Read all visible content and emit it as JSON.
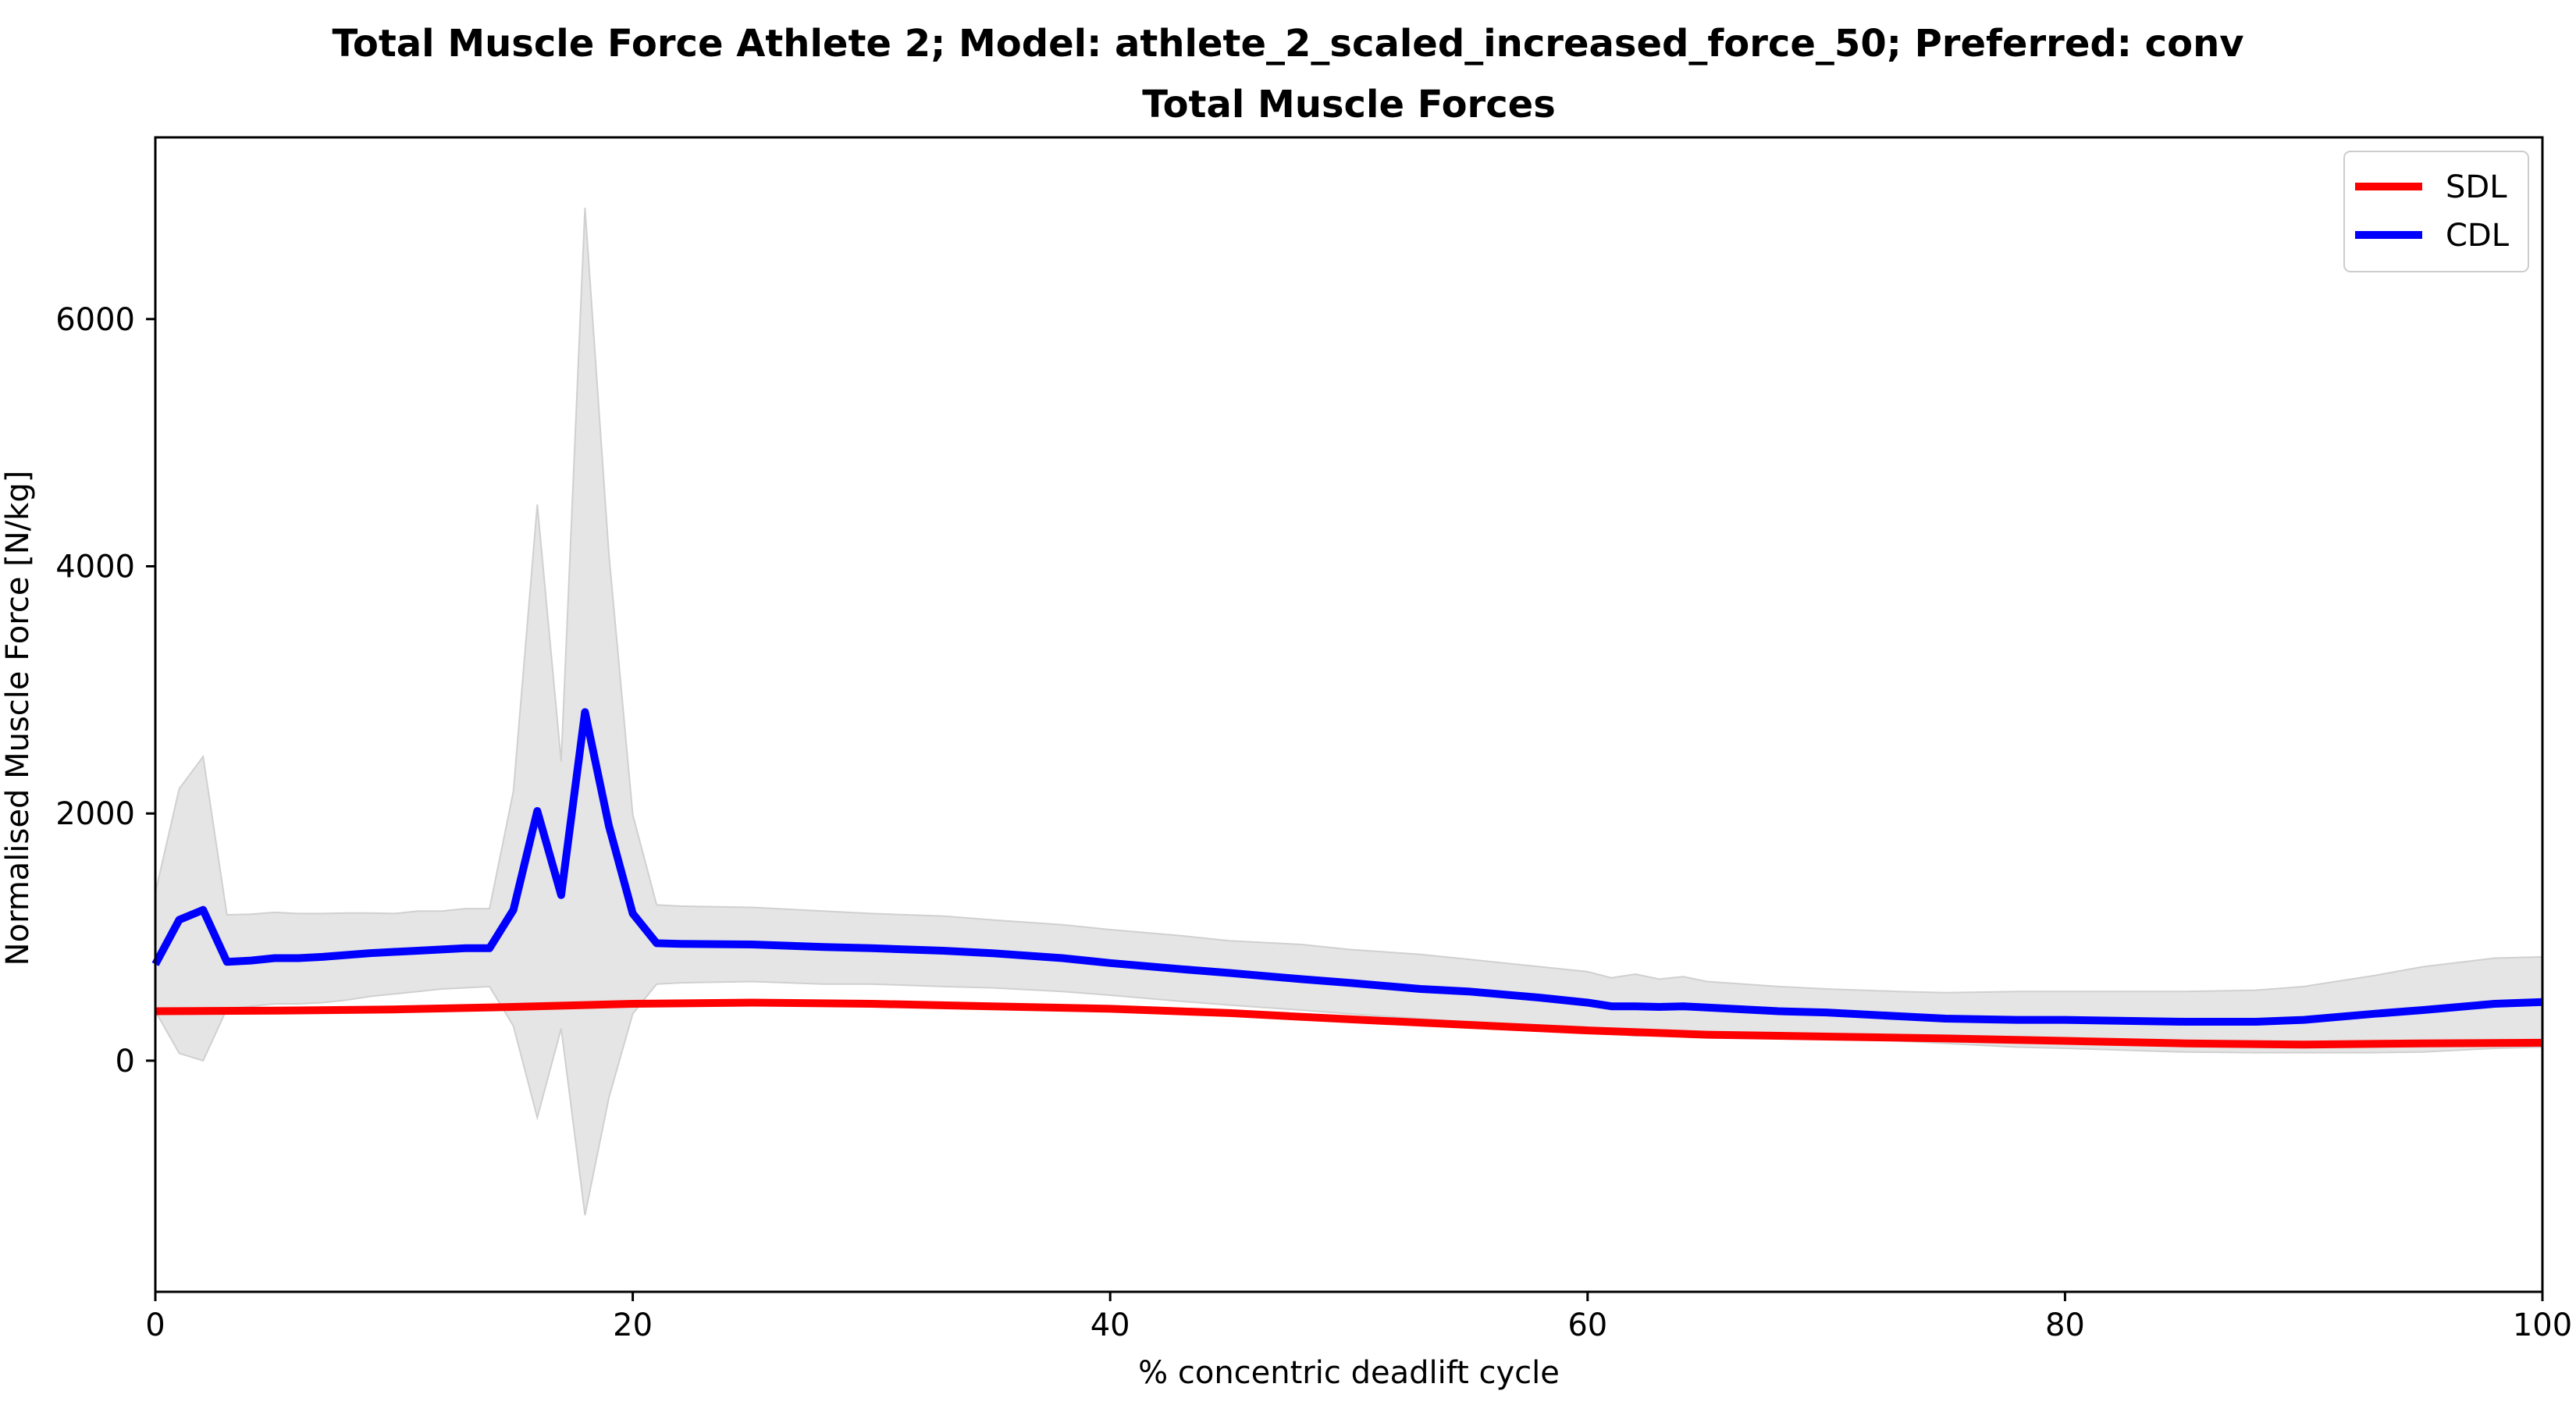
{
  "chart_data": {
    "type": "line",
    "suptitle": "Total Muscle Force Athlete 2; Model: athlete_2_scaled_increased_force_50; Preferred: conv",
    "title": "Total Muscle Forces",
    "xlabel": "% concentric deadlift cycle",
    "ylabel": "Normalised Muscle Force [N/kg]",
    "xlim": [
      0,
      100
    ],
    "ylim": [
      -1870,
      7470
    ],
    "xticks": [
      0,
      20,
      40,
      60,
      80,
      100
    ],
    "yticks": [
      0,
      2000,
      4000,
      6000
    ],
    "grid": false,
    "legend_position": "top-right",
    "colors": {
      "SDL": "#ff0000",
      "CDL": "#0000ff",
      "band": "#e5e5e5",
      "band_edge": "#d0d0d0"
    },
    "series": [
      {
        "name": "SDL",
        "x": [
          0,
          5,
          10,
          15,
          20,
          25,
          30,
          35,
          40,
          45,
          50,
          55,
          60,
          65,
          70,
          75,
          80,
          85,
          90,
          95,
          100
        ],
        "values": [
          400,
          405,
          415,
          435,
          460,
          470,
          460,
          440,
          420,
          385,
          335,
          290,
          245,
          210,
          195,
          180,
          160,
          140,
          130,
          140,
          145
        ]
      },
      {
        "name": "CDL",
        "x": [
          0,
          1,
          2,
          3,
          4,
          5,
          6,
          7,
          8,
          9,
          10,
          11,
          12,
          13,
          14,
          15,
          16,
          17,
          18,
          19,
          20,
          21,
          22,
          25,
          28,
          30,
          33,
          35,
          38,
          40,
          43,
          45,
          48,
          50,
          53,
          55,
          58,
          60,
          61,
          62,
          63,
          64,
          65,
          68,
          70,
          73,
          75,
          78,
          80,
          85,
          88,
          90,
          93,
          95,
          98,
          100
        ],
        "values": [
          780,
          1140,
          1220,
          800,
          810,
          830,
          830,
          840,
          855,
          870,
          880,
          890,
          900,
          910,
          910,
          1220,
          2020,
          1340,
          2820,
          1900,
          1190,
          950,
          945,
          940,
          920,
          910,
          890,
          870,
          830,
          790,
          740,
          710,
          660,
          630,
          580,
          560,
          510,
          470,
          440,
          440,
          435,
          440,
          430,
          400,
          390,
          360,
          340,
          330,
          330,
          315,
          315,
          330,
          380,
          410,
          460,
          475
        ]
      }
    ],
    "band": {
      "x": [
        0,
        1,
        2,
        3,
        4,
        5,
        6,
        7,
        8,
        9,
        10,
        11,
        12,
        13,
        14,
        15,
        16,
        17,
        18,
        19,
        20,
        21,
        22,
        25,
        28,
        30,
        33,
        35,
        38,
        40,
        43,
        45,
        48,
        50,
        53,
        55,
        58,
        60,
        61,
        62,
        63,
        64,
        65,
        68,
        70,
        73,
        75,
        78,
        80,
        85,
        88,
        90,
        93,
        95,
        98,
        100
      ],
      "upper": [
        1360,
        2200,
        2460,
        1180,
        1185,
        1200,
        1190,
        1190,
        1195,
        1195,
        1190,
        1210,
        1210,
        1230,
        1230,
        2180,
        4500,
        2420,
        6900,
        4100,
        1990,
        1260,
        1250,
        1240,
        1210,
        1190,
        1170,
        1140,
        1100,
        1060,
        1010,
        970,
        940,
        900,
        860,
        820,
        760,
        720,
        670,
        700,
        660,
        680,
        640,
        600,
        580,
        560,
        550,
        560,
        560,
        560,
        570,
        600,
        690,
        760,
        830,
        840
      ],
      "lower": [
        400,
        60,
        0,
        420,
        440,
        460,
        460,
        470,
        490,
        520,
        540,
        560,
        580,
        590,
        600,
        280,
        -460,
        260,
        -1250,
        -300,
        380,
        620,
        630,
        640,
        620,
        620,
        600,
        590,
        560,
        530,
        480,
        450,
        410,
        380,
        340,
        310,
        270,
        240,
        220,
        200,
        210,
        200,
        200,
        200,
        190,
        160,
        140,
        110,
        100,
        70,
        65,
        65,
        65,
        70,
        100,
        110
      ]
    }
  }
}
